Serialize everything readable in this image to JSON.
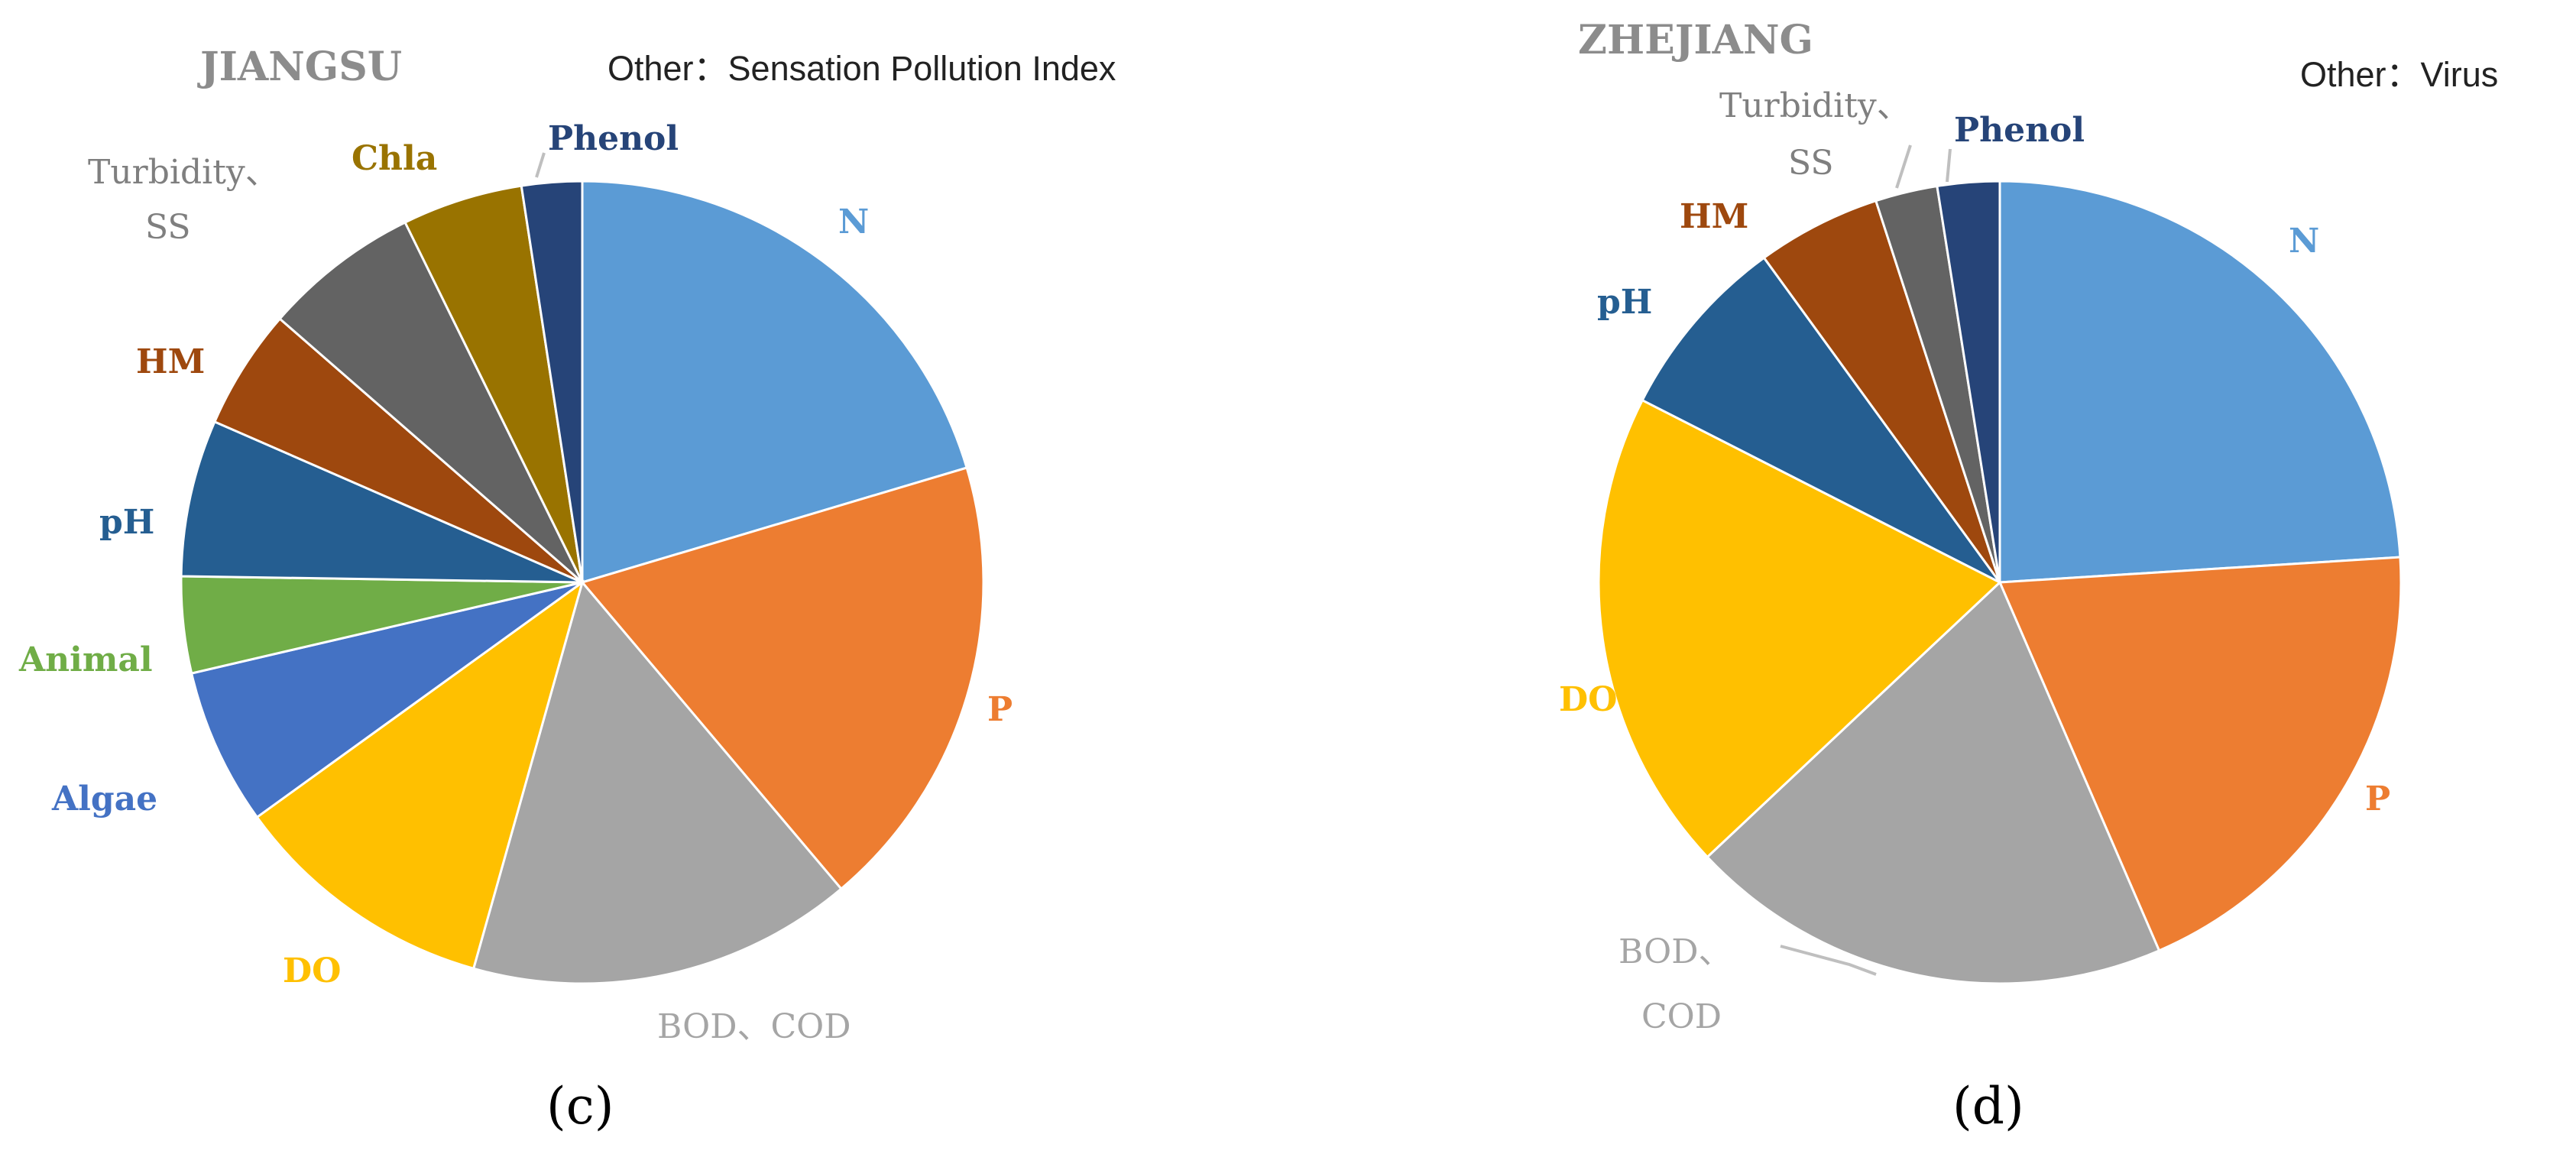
{
  "colors": {
    "N": "#5b9bd5",
    "P": "#ed7d31",
    "BOD_COD": "#a5a5a5",
    "DO": "#ffc000",
    "Algae": "#4472c4",
    "Animal": "#70ad47",
    "pH": "#255e91",
    "HM": "#9e480e",
    "Turbidity_SS": "#636363",
    "Chla": "#997300",
    "Phenol": "#264478"
  },
  "chart_data": [
    {
      "type": "pie",
      "title": "JIANGSU",
      "note": "Other：Sensation Pollution Index",
      "caption": "(c)",
      "slices": [
        {
          "label": "N",
          "value": 21,
          "color": "#5b9bd5",
          "label_color": "#5b9bd5"
        },
        {
          "label": "P",
          "value": 19,
          "color": "#ed7d31",
          "label_color": "#ed7d31"
        },
        {
          "label": "BOD、COD",
          "value": 16,
          "color": "#a5a5a5",
          "label_color": "#a5a5a5"
        },
        {
          "label": "DO",
          "value": 11,
          "color": "#ffc000",
          "label_color": "#ffc000"
        },
        {
          "label": "Algae",
          "value": 6.5,
          "color": "#4472c4",
          "label_color": "#4472c4"
        },
        {
          "label": "Animal",
          "value": 4,
          "color": "#70ad47",
          "label_color": "#70ad47"
        },
        {
          "label": "pH",
          "value": 6.5,
          "color": "#255e91",
          "label_color": "#255e91"
        },
        {
          "label": "HM",
          "value": 5,
          "color": "#9e480e",
          "label_color": "#9e480e"
        },
        {
          "label": "Turbidity、SS",
          "value": 6.5,
          "color": "#636363",
          "label_color": "#7f7f7f"
        },
        {
          "label": "Chla",
          "value": 5,
          "color": "#997300",
          "label_color": "#997300"
        },
        {
          "label": "Phenol",
          "value": 2.5,
          "color": "#264478",
          "label_color": "#264478"
        }
      ]
    },
    {
      "type": "pie",
      "title": "ZHEJIANG",
      "note": "Other：Virus",
      "caption": "(d)",
      "slices": [
        {
          "label": "N",
          "value": 24,
          "color": "#5b9bd5",
          "label_color": "#5b9bd5"
        },
        {
          "label": "P",
          "value": 19.5,
          "color": "#ed7d31",
          "label_color": "#ed7d31"
        },
        {
          "label": "BOD、COD",
          "value": 19.5,
          "color": "#a5a5a5",
          "label_color": "#a5a5a5"
        },
        {
          "label": "DO",
          "value": 19.5,
          "color": "#ffc000",
          "label_color": "#ffc000"
        },
        {
          "label": "pH",
          "value": 7.5,
          "color": "#255e91",
          "label_color": "#255e91"
        },
        {
          "label": "HM",
          "value": 5,
          "color": "#9e480e",
          "label_color": "#9e480e"
        },
        {
          "label": "Turbidity、SS",
          "value": 2.5,
          "color": "#636363",
          "label_color": "#7f7f7f"
        },
        {
          "label": "Phenol",
          "value": 2.5,
          "color": "#264478",
          "label_color": "#264478"
        }
      ]
    }
  ]
}
